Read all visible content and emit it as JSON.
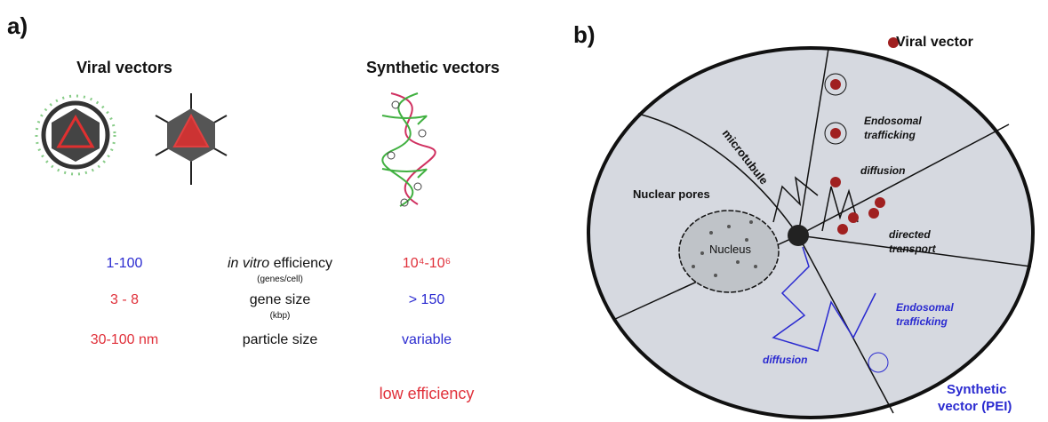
{
  "panel_a": {
    "label": "a)",
    "viral_title": "Viral vectors",
    "synthetic_title": "Synthetic vectors",
    "rows": [
      {
        "viral": "1-100",
        "property_italic": "in vitro",
        "property": "efficiency",
        "unit": "(genes/cell)",
        "synthetic": "10⁴-10⁶"
      },
      {
        "viral": "3 - 8",
        "property": "gene size",
        "unit": "(kbp)",
        "synthetic": "> 150"
      },
      {
        "viral": "30-100 nm",
        "property": "particle size",
        "synthetic": "variable"
      }
    ],
    "footer": "low efficiency"
  },
  "panel_b": {
    "label": "b)",
    "viral_vector": "Viral vector",
    "viral_endosomal": [
      "Endosomal",
      "trafficking"
    ],
    "viral_diffusion": "diffusion",
    "directed_transport": [
      "directed",
      "transport"
    ],
    "microtubule": "microtubule",
    "nuclear_pores": "Nuclear pores",
    "nucleus": "Nucleus",
    "synthetic_endosomal": [
      "Endosomal",
      "trafficking"
    ],
    "synthetic_diffusion": "diffusion",
    "synthetic_vector": [
      "Synthetic",
      "vector (PEI)"
    ]
  }
}
